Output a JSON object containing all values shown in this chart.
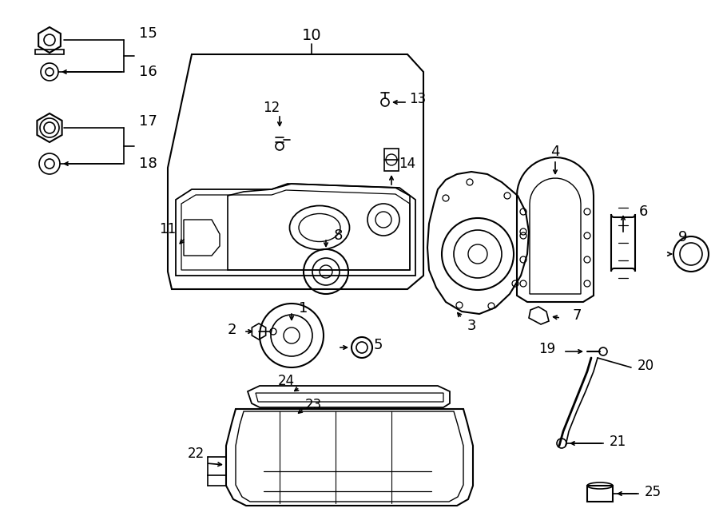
{
  "bg_color": "#ffffff",
  "lc": "#000000",
  "figsize": [
    9.0,
    6.61
  ],
  "dpi": 100,
  "xlim": [
    0,
    900
  ],
  "ylim": [
    0,
    661
  ]
}
